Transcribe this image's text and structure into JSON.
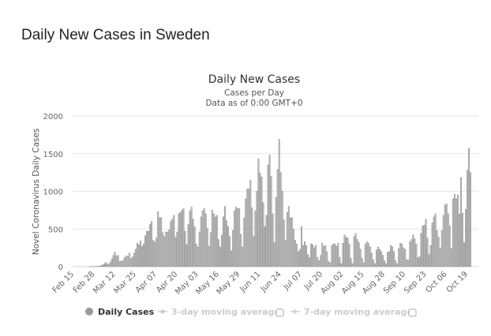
{
  "page": {
    "title": "Daily New Cases in Sweden"
  },
  "chart_data": {
    "type": "bar",
    "title": "Daily New Cases",
    "subtitle": [
      "Cases per Day",
      "Data as of 0:00 GMT+0"
    ],
    "ylabel": "Novel Coronavirus Daily Cases",
    "xlabel": "",
    "ylim": [
      0,
      2000
    ],
    "y_ticks": [
      "0",
      "500",
      "1000",
      "1500",
      "2000"
    ],
    "x_ticks": [
      "Feb 15",
      "Feb 28",
      "Mar 12",
      "Mar 25",
      "Apr 07",
      "Apr 20",
      "May 03",
      "May 16",
      "May 29",
      "Jun 11",
      "Jun 24",
      "Jul 07",
      "Jul 20",
      "Aug 02",
      "Aug 15",
      "Aug 28",
      "Sep 10",
      "Sep 23",
      "Oct 06",
      "Oct 19"
    ],
    "grid": true,
    "legend_position": "bottom",
    "bar_color": "#c4c4c4",
    "bar_outline": "#8a8a8a",
    "series": [
      {
        "name": "Daily Cases",
        "visible": true,
        "values": [
          0,
          0,
          0,
          0,
          0,
          0,
          0,
          0,
          0,
          0,
          1,
          2,
          3,
          2,
          3,
          5,
          5,
          10,
          20,
          30,
          55,
          40,
          25,
          60,
          100,
          150,
          190,
          140,
          150,
          70,
          70,
          80,
          120,
          140,
          140,
          180,
          110,
          130,
          180,
          230,
          310,
          290,
          340,
          270,
          300,
          410,
          470,
          470,
          560,
          600,
          350,
          330,
          380,
          730,
          650,
          650,
          450,
          400,
          460,
          460,
          490,
          600,
          630,
          680,
          390,
          460,
          700,
          720,
          750,
          770,
          470,
          290,
          560,
          740,
          790,
          630,
          530,
          300,
          260,
          460,
          660,
          740,
          770,
          700,
          510,
          270,
          450,
          750,
          700,
          660,
          680,
          360,
          260,
          420,
          660,
          800,
          610,
          530,
          400,
          210,
          480,
          740,
          790,
          770,
          770,
          430,
          260,
          650,
          900,
          1030,
          1030,
          1150,
          780,
          400,
          740,
          1000,
          1430,
          1240,
          1190,
          850,
          530,
          680,
          1350,
          1480,
          1200,
          700,
          320,
          920,
          1290,
          1690,
          1250,
          1000,
          620,
          350,
          720,
          800,
          650,
          650,
          500,
          350,
          300,
          200,
          230,
          530,
          280,
          330,
          280,
          160,
          120,
          300,
          290,
          250,
          280,
          120,
          80,
          150,
          310,
          270,
          280,
          200,
          70,
          50,
          280,
          300,
          300,
          270,
          310,
          120,
          40,
          310,
          420,
          390,
          380,
          300,
          110,
          40,
          400,
          440,
          360,
          320,
          230,
          110,
          50,
          300,
          330,
          310,
          260,
          180,
          90,
          40,
          220,
          260,
          230,
          200,
          150,
          80,
          40,
          190,
          200,
          280,
          260,
          200,
          80,
          40,
          240,
          310,
          300,
          250,
          230,
          90,
          90,
          330,
          360,
          420,
          370,
          300,
          120,
          130,
          440,
          540,
          550,
          630,
          380,
          160,
          280,
          580,
          660,
          700,
          480,
          390,
          250,
          480,
          680,
          820,
          830,
          700,
          540,
          240,
          900,
          960,
          900,
          950,
          700,
          1180,
          710,
          320,
          760,
          1280,
          1570,
          1250
        ]
      },
      {
        "name": "3-day moving average",
        "visible": false
      },
      {
        "name": "7-day moving average",
        "visible": false
      }
    ]
  }
}
